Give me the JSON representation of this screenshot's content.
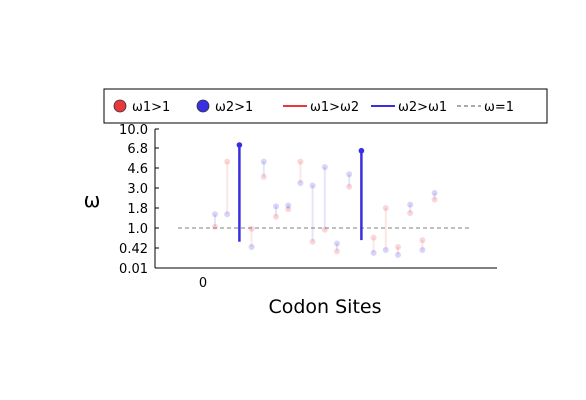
{
  "chart_data": {
    "type": "scatter",
    "xlabel": "Codon Sites",
    "ylabel": "ω",
    "x_ticks": [
      "0"
    ],
    "y_ticks": [
      "0.01",
      "0.42",
      "1.0",
      "1.8",
      "3.0",
      "4.6",
      "6.8",
      "10.0"
    ],
    "legend_position": "top",
    "legend": [
      {
        "label": "ω1>1",
        "kind": "point",
        "color": "#e8383d"
      },
      {
        "label": "ω2>1",
        "kind": "point",
        "color": "#3a2fe0"
      },
      {
        "label": "ω1>ω2",
        "kind": "line",
        "color": "#e8383d"
      },
      {
        "label": "ω2>ω1",
        "kind": "line",
        "color": "#3a2fe0"
      },
      {
        "label": "ω=1",
        "kind": "dashed",
        "color": "#aaaaaa"
      }
    ],
    "reference_line": {
      "label": "ω=1",
      "y": 1.0
    },
    "sites": [
      {
        "site": 1,
        "omega1": 1.05,
        "omega2": 1.55,
        "highlight": false
      },
      {
        "site": 2,
        "omega1": 5.3,
        "omega2": 1.55,
        "highlight": false
      },
      {
        "site": 3,
        "omega1": 0.6,
        "omega2": 7.3,
        "highlight": true
      },
      {
        "site": 4,
        "omega1": 0.98,
        "omega2": 0.45,
        "highlight": false
      },
      {
        "site": 5,
        "omega1": 3.9,
        "omega2": 5.3,
        "highlight": false
      },
      {
        "site": 6,
        "omega1": 1.45,
        "omega2": 1.9,
        "highlight": false
      },
      {
        "site": 7,
        "omega1": 1.75,
        "omega2": 1.95,
        "highlight": false
      },
      {
        "site": 8,
        "omega1": 5.3,
        "omega2": 3.4,
        "highlight": false
      },
      {
        "site": 9,
        "omega1": 0.6,
        "omega2": 3.2,
        "highlight": false
      },
      {
        "site": 10,
        "omega1": 0.95,
        "omega2": 4.7,
        "highlight": false
      },
      {
        "site": 11,
        "omega1": 0.35,
        "omega2": 0.55,
        "highlight": false
      },
      {
        "site": 12,
        "omega1": 3.1,
        "omega2": 4.1,
        "highlight": false
      },
      {
        "site": 13,
        "omega1": 0.65,
        "omega2": 6.5,
        "highlight": true
      },
      {
        "site": 14,
        "omega1": 0.72,
        "omega2": 0.32,
        "highlight": false
      },
      {
        "site": 15,
        "omega1": 1.8,
        "omega2": 0.38,
        "highlight": false
      },
      {
        "site": 16,
        "omega1": 0.45,
        "omega2": 0.28,
        "highlight": false
      },
      {
        "site": 17,
        "omega1": 1.6,
        "omega2": 2.0,
        "highlight": false
      },
      {
        "site": 18,
        "omega1": 0.65,
        "omega2": 0.38,
        "highlight": false
      },
      {
        "site": 19,
        "omega1": 2.3,
        "omega2": 2.7,
        "highlight": false
      }
    ],
    "colors": {
      "omega1": "#e8383d",
      "omega2": "#3a2fe0",
      "reference": "#aaaaaa"
    }
  }
}
